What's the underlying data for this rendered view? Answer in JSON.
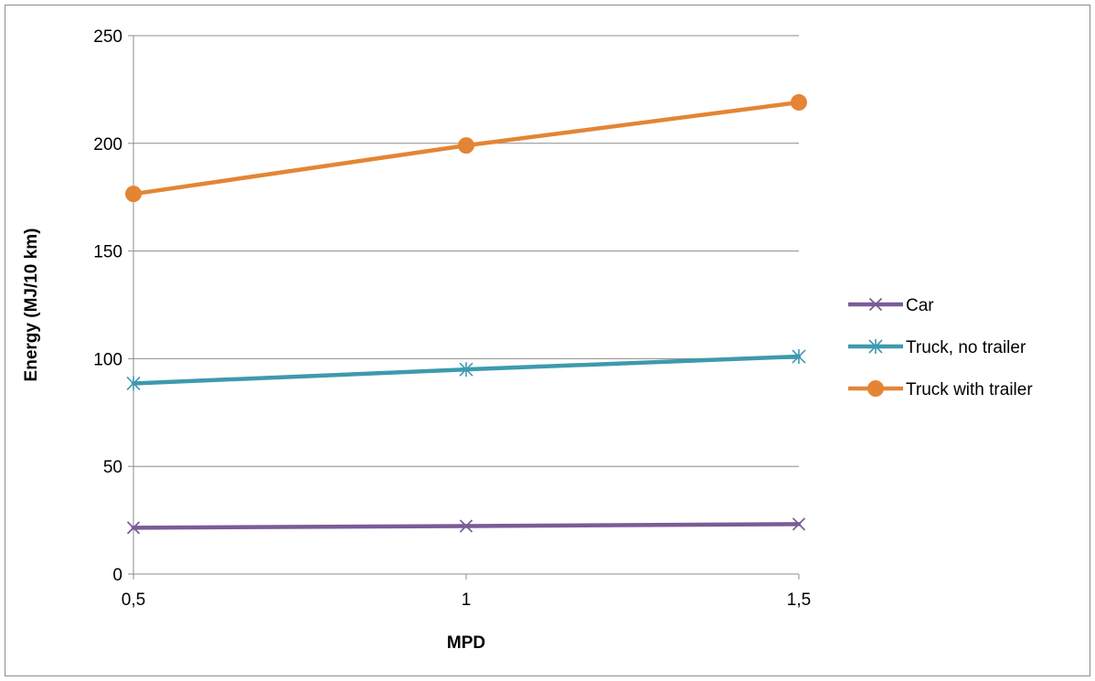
{
  "chart_data": {
    "type": "line",
    "title": "",
    "xlabel": "MPD",
    "ylabel": "Energy (MJ/10 km)",
    "categories": [
      "0,5",
      "1",
      "1,5"
    ],
    "x": [
      0.5,
      1,
      1.5
    ],
    "ylim": [
      0,
      250
    ],
    "yticks": [
      0,
      50,
      100,
      150,
      200,
      250
    ],
    "grid": true,
    "legend_position": "right",
    "series": [
      {
        "name": "Car",
        "values": [
          21.5,
          22.3,
          23.2
        ],
        "color": "#7b5c97",
        "marker": "x"
      },
      {
        "name": "Truck, no trailer",
        "values": [
          88.5,
          95,
          101
        ],
        "color": "#3d9aae",
        "marker": "asterisk"
      },
      {
        "name": "Truck with trailer",
        "values": [
          176.5,
          199,
          219
        ],
        "color": "#e48535",
        "marker": "circle"
      }
    ]
  }
}
